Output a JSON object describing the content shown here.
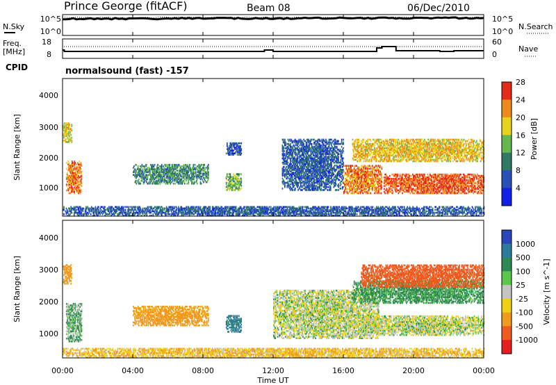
{
  "header": {
    "station": "Prince George (fitACF)",
    "beam": "Beam 08",
    "date": "06/Dec/2010"
  },
  "noise_panel": {
    "left_label": "N.Sky",
    "left_ticks": [
      "10^5",
      "10^0"
    ],
    "right_label": "N.Search",
    "right_ticks": [
      "10^5",
      "10^0"
    ]
  },
  "freq_panel": {
    "left_label_1": "Freq.",
    "left_label_2": "[MHz]",
    "left_ticks": [
      "18",
      "8"
    ],
    "right_label": "Nave",
    "right_ticks": [
      "60",
      "0"
    ]
  },
  "cpid_panel": {
    "label": "CPID",
    "text": "normalsound (fast) -157"
  },
  "x_axis": {
    "label": "Time UT",
    "ticks": [
      "00:00",
      "04:00",
      "08:00",
      "12:00",
      "16:00",
      "20:00",
      "00:00"
    ]
  },
  "power_panel": {
    "ylabel": "Slant Range [km]",
    "yticks": [
      "1000",
      "2000",
      "3000",
      "4000"
    ],
    "colorbar_label": "Power [dB]",
    "colorbar_ticks": [
      "4",
      "8",
      "12",
      "16",
      "20",
      "24",
      "28"
    ],
    "colors": [
      "#1020e8",
      "#2a50b8",
      "#2e7a62",
      "#64b850",
      "#e8d41e",
      "#f08a1c",
      "#e62a18",
      "#e8e8e8"
    ]
  },
  "velocity_panel": {
    "ylabel": "Slant Range [km]",
    "yticks": [
      "1000",
      "2000",
      "3000",
      "4000"
    ],
    "colorbar_label": "Velocity [m s^-1]",
    "colorbar_ticks": [
      "1000",
      "500",
      "100",
      "25",
      "-25",
      "-100",
      "-500",
      "-1000"
    ],
    "colors": [
      "#2a46b8",
      "#2a7c9a",
      "#2e8a52",
      "#5cc84a",
      "#c4c4c0",
      "#f0d014",
      "#f09a1e",
      "#f05a1e",
      "#e61e1e"
    ]
  },
  "chart_data": [
    {
      "type": "heatmap",
      "title": "Power",
      "xlabel": "Time UT",
      "ylabel": "Slant Range [km]",
      "xlim": [
        "00:00",
        "24:00"
      ],
      "ylim": [
        200,
        4500
      ],
      "colorbar": {
        "label": "Power [dB]",
        "range": [
          0,
          32
        ],
        "ticks": [
          4,
          8,
          12,
          16,
          20,
          24,
          28
        ]
      },
      "regions": [
        {
          "t": [
            0.0,
            0.5
          ],
          "range_km": [
            2500,
            3100
          ],
          "value": 20
        },
        {
          "t": [
            0.2,
            1.1
          ],
          "range_km": [
            900,
            1900
          ],
          "value": 26
        },
        {
          "t": [
            4.0,
            8.3
          ],
          "range_km": [
            1200,
            1800
          ],
          "value": 12
        },
        {
          "t": [
            9.3,
            10.2
          ],
          "range_km": [
            1000,
            1500
          ],
          "value": 16
        },
        {
          "t": [
            9.3,
            10.2
          ],
          "range_km": [
            2100,
            2500
          ],
          "value": 6
        },
        {
          "t": [
            12.5,
            16.0
          ],
          "range_km": [
            1000,
            2600
          ],
          "value": 8
        },
        {
          "t": [
            16.0,
            18.2
          ],
          "range_km": [
            900,
            1800
          ],
          "value": 26
        },
        {
          "t": [
            16.5,
            24.0
          ],
          "range_km": [
            1900,
            2600
          ],
          "value": 22
        },
        {
          "t": [
            18.3,
            24.0
          ],
          "range_km": [
            900,
            1500
          ],
          "value": 28
        },
        {
          "t": [
            0.0,
            24.0
          ],
          "range_km": [
            200,
            500
          ],
          "value": 8
        }
      ]
    },
    {
      "type": "heatmap",
      "title": "Velocity",
      "xlabel": "Time UT",
      "ylabel": "Slant Range [km]",
      "xlim": [
        "00:00",
        "24:00"
      ],
      "ylim": [
        200,
        4500
      ],
      "colorbar": {
        "label": "Velocity [m s^-1]",
        "ticks": [
          1000,
          500,
          100,
          25,
          -25,
          -100,
          -500,
          -1000
        ]
      },
      "regions": [
        {
          "t": [
            0.0,
            0.5
          ],
          "range_km": [
            2500,
            3100
          ],
          "value": -300
        },
        {
          "t": [
            0.2,
            1.1
          ],
          "range_km": [
            700,
            1900
          ],
          "value": 60
        },
        {
          "t": [
            4.0,
            8.3
          ],
          "range_km": [
            1200,
            1800
          ],
          "value": -300
        },
        {
          "t": [
            9.3,
            10.2
          ],
          "range_km": [
            1000,
            1500
          ],
          "value": 300
        },
        {
          "t": [
            12.0,
            18.0
          ],
          "range_km": [
            800,
            2300
          ],
          "value": 0
        },
        {
          "t": [
            16.5,
            24.0
          ],
          "range_km": [
            1900,
            2600
          ],
          "value": 100
        },
        {
          "t": [
            17.0,
            24.0
          ],
          "range_km": [
            900,
            1500
          ],
          "value": 0
        },
        {
          "t": [
            17.0,
            24.0
          ],
          "range_km": [
            2400,
            3100
          ],
          "value": -600
        },
        {
          "t": [
            0.0,
            24.0
          ],
          "range_km": [
            200,
            500
          ],
          "value": -80
        }
      ]
    }
  ]
}
